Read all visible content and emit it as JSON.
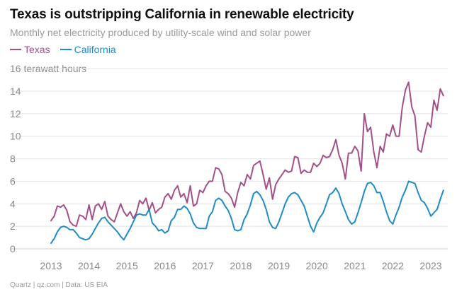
{
  "title": "Texas is outstripping California in renewable electricity",
  "subtitle": "Monthly net electricity produced by utility-scale wind and solar power",
  "source": "Quartz | qz.com | Data: US EIA",
  "colors": {
    "texas": "#a3508a",
    "california": "#1f8cc8",
    "grid": "#e2e2e2",
    "tick": "#8a8a8a"
  },
  "chart_data": {
    "type": "line",
    "title": "Texas is outstripping California in renewable electricity",
    "ylabel": "16 terawatt hours",
    "ylim": [
      0,
      16
    ],
    "yticks": [
      0,
      2,
      4,
      6,
      8,
      10,
      12,
      14
    ],
    "ytick_labels": [
      "0",
      "2",
      "4",
      "6",
      "8",
      "10",
      "12",
      "14"
    ],
    "xlim": [
      2013,
      2023.45
    ],
    "xticks": [
      2013,
      2014,
      2015,
      2016,
      2017,
      2018,
      2019,
      2020,
      2021,
      2022,
      2023
    ],
    "xtick_labels": [
      "2013",
      "2014",
      "2015",
      "2016",
      "2017",
      "2018",
      "2019",
      "2020",
      "2021",
      "2022",
      "2023"
    ],
    "x_start": 2013.0,
    "x_step": 0.08333,
    "series": [
      {
        "name": "Texas",
        "color": "#a3508a",
        "values": [
          2.5,
          2.9,
          3.8,
          3.7,
          3.9,
          3.4,
          2.4,
          2.1,
          2.0,
          3.0,
          2.9,
          2.6,
          3.9,
          2.6,
          3.8,
          4.0,
          3.5,
          4.2,
          2.9,
          2.6,
          2.4,
          3.2,
          4.0,
          3.3,
          2.9,
          3.3,
          2.7,
          3.2,
          4.3,
          4.0,
          4.5,
          3.4,
          4.1,
          3.2,
          3.5,
          3.7,
          4.6,
          4.9,
          4.4,
          5.2,
          5.6,
          4.6,
          4.9,
          4.1,
          5.6,
          3.8,
          4.0,
          5.2,
          5.0,
          5.6,
          6.0,
          6.0,
          7.2,
          7.1,
          6.6,
          5.1,
          4.9,
          4.5,
          3.7,
          5.0,
          5.9,
          5.6,
          6.6,
          6.2,
          7.4,
          7.6,
          7.8,
          6.6,
          5.3,
          6.3,
          4.4,
          5.7,
          6.2,
          6.6,
          7.0,
          6.8,
          6.9,
          8.2,
          8.1,
          6.7,
          7.0,
          6.8,
          6.8,
          7.6,
          7.3,
          7.6,
          8.3,
          8.1,
          8.2,
          8.8,
          9.7,
          8.3,
          7.6,
          6.2,
          8.5,
          8.5,
          9.1,
          8.7,
          6.9,
          12.0,
          10.4,
          10.8,
          8.6,
          7.2,
          9.1,
          8.6,
          10.2,
          10.0,
          11.0,
          10.0,
          10.0,
          12.6,
          14.1,
          14.8,
          12.6,
          11.8,
          8.8,
          8.6,
          10.0,
          11.2,
          10.8,
          13.2,
          12.3,
          14.2,
          13.6
        ]
      },
      {
        "name": "California",
        "color": "#1f8cc8",
        "values": [
          0.5,
          0.9,
          1.5,
          1.9,
          2.0,
          1.9,
          1.7,
          1.7,
          1.4,
          1.0,
          0.9,
          0.8,
          0.9,
          1.3,
          1.8,
          2.3,
          2.7,
          2.8,
          2.4,
          2.1,
          1.8,
          1.5,
          1.1,
          0.8,
          1.3,
          1.8,
          2.4,
          3.0,
          3.1,
          3.0,
          3.0,
          3.5,
          2.3,
          2.0,
          1.6,
          1.7,
          1.4,
          1.6,
          2.5,
          2.8,
          3.5,
          3.5,
          3.8,
          3.6,
          3.1,
          2.3,
          1.9,
          1.8,
          1.8,
          1.8,
          2.9,
          3.3,
          4.3,
          4.5,
          4.3,
          3.8,
          3.4,
          2.7,
          1.7,
          1.6,
          1.7,
          2.6,
          3.1,
          3.9,
          4.9,
          5.1,
          4.8,
          4.3,
          3.5,
          2.4,
          1.9,
          1.8,
          2.4,
          3.2,
          4.0,
          4.6,
          4.9,
          5.0,
          4.8,
          4.3,
          3.8,
          2.9,
          2.0,
          1.5,
          2.3,
          2.8,
          3.2,
          4.0,
          4.8,
          5.0,
          5.4,
          4.9,
          4.0,
          3.3,
          2.6,
          2.2,
          2.4,
          3.2,
          4.1,
          5.1,
          5.8,
          5.9,
          5.6,
          5.0,
          5.0,
          4.2,
          3.3,
          2.5,
          2.2,
          3.0,
          3.7,
          4.6,
          5.2,
          6.0,
          5.9,
          5.8,
          5.0,
          4.3,
          4.1,
          3.6,
          2.9,
          3.2,
          3.5,
          4.4,
          5.2
        ]
      }
    ]
  }
}
